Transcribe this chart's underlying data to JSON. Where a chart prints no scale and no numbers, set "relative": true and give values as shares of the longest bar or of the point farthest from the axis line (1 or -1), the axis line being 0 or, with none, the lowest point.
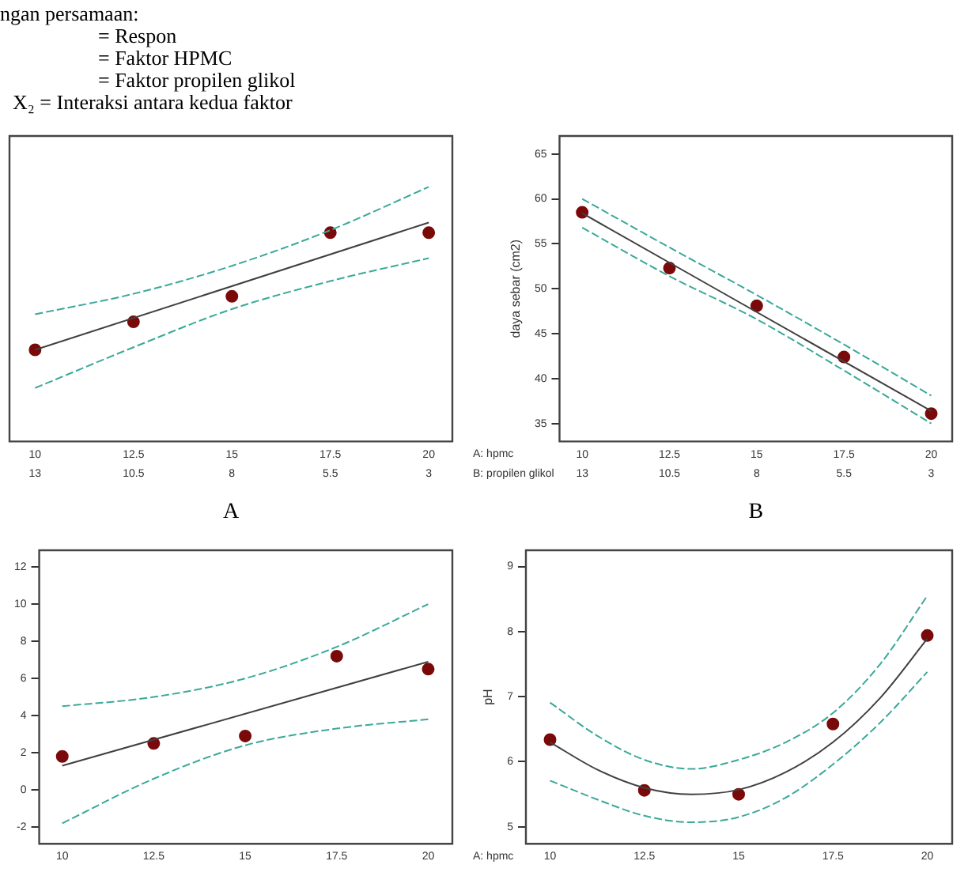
{
  "chart_data": [
    {
      "type": "other",
      "annotations": [
        "ngan persamaan:",
        "= Respon",
        "= Faktor HPMC",
        "= Faktor propilen glikol",
        "X₂ = Interaksi antara kedua faktor"
      ]
    },
    {
      "type": "scatter",
      "relative": true,
      "xlim": [
        9.35,
        20.6
      ],
      "xticks": [
        10,
        12.5,
        15,
        17.5,
        20
      ],
      "x2lim": [
        13.65,
        2.4
      ],
      "x2ticks": [
        13,
        10.5,
        8,
        5.5,
        3
      ],
      "annotations": [
        "A"
      ],
      "series": [
        {
          "type": "line",
          "marker": "none",
          "color": "#3aa89a",
          "line_style": "dashed",
          "x": [
            10,
            12.5,
            15,
            17.5,
            20
          ],
          "values": [
            0.5,
            0.58,
            0.69,
            0.83,
            1
          ]
        },
        {
          "type": "line",
          "marker": "none",
          "color": "#3aa89a",
          "line_style": "dashed",
          "x": [
            10,
            12.5,
            15,
            17.5,
            20
          ],
          "values": [
            0.21,
            0.37,
            0.52,
            0.63,
            0.72
          ]
        },
        {
          "type": "line",
          "marker": "none",
          "color": "#404040",
          "line_style": "solid",
          "x": [
            10,
            20
          ],
          "values": [
            0.36,
            0.86
          ]
        },
        {
          "type": "scatter",
          "marker": "circle",
          "color": "#7a0a0a",
          "x": [
            10,
            12.5,
            15,
            17.5,
            20
          ],
          "values": [
            0.36,
            0.47,
            0.57,
            0.82,
            0.82
          ]
        }
      ]
    },
    {
      "type": "scatter",
      "ylabel": "daya sebar (cm2)",
      "xlabel": "A: hpmc",
      "x2label": "B: propilen glikol",
      "xlim": [
        9.35,
        20.6
      ],
      "xticks": [
        10,
        12.5,
        15,
        17.5,
        20
      ],
      "x2lim": [
        13.65,
        2.4
      ],
      "x2ticks": [
        13,
        10.5,
        8,
        5.5,
        3
      ],
      "ylim": [
        33,
        67
      ],
      "yticks": [
        35,
        40,
        45,
        50,
        55,
        60,
        65
      ],
      "annotations": [
        "B"
      ],
      "series": [
        {
          "type": "line",
          "marker": "none",
          "color": "#3aa89a",
          "line_style": "dashed",
          "x": [
            10,
            12.5,
            15,
            17.5,
            20
          ],
          "values": [
            60.0,
            54.6,
            49.3,
            43.8,
            38.1
          ]
        },
        {
          "type": "line",
          "marker": "none",
          "color": "#3aa89a",
          "line_style": "dashed",
          "x": [
            10,
            12.5,
            15,
            17.5,
            20
          ],
          "values": [
            56.8,
            51.4,
            46.6,
            40.9,
            35.0
          ]
        },
        {
          "type": "line",
          "marker": "none",
          "color": "#404040",
          "line_style": "solid",
          "x": [
            10,
            20
          ],
          "values": [
            58.4,
            36.4
          ]
        },
        {
          "type": "scatter",
          "marker": "circle",
          "color": "#7a0a0a",
          "x": [
            10,
            12.5,
            15,
            17.5,
            20
          ],
          "values": [
            58.5,
            52.3,
            48.1,
            42.4,
            36.1
          ]
        }
      ]
    },
    {
      "type": "scatter",
      "xlim": [
        9.37,
        20.66
      ],
      "xticks": [
        10,
        12.5,
        15,
        17.5,
        20
      ],
      "ylim": [
        -2.9,
        12.9
      ],
      "yticks": [
        -2,
        0,
        2,
        4,
        6,
        8,
        10,
        12
      ],
      "series": [
        {
          "type": "line",
          "marker": "none",
          "color": "#3aa89a",
          "line_style": "dashed",
          "x": [
            10,
            12.5,
            15,
            17.5,
            20
          ],
          "values": [
            4.5,
            5.0,
            6.0,
            7.7,
            10.0
          ]
        },
        {
          "type": "line",
          "marker": "none",
          "color": "#3aa89a",
          "line_style": "dashed",
          "x": [
            10,
            12.5,
            15,
            17.5,
            20
          ],
          "values": [
            -1.8,
            0.6,
            2.4,
            3.3,
            3.8
          ]
        },
        {
          "type": "line",
          "marker": "none",
          "color": "#404040",
          "line_style": "solid",
          "x": [
            10,
            20
          ],
          "values": [
            1.3,
            6.9
          ]
        },
        {
          "type": "scatter",
          "marker": "circle",
          "color": "#7a0a0a",
          "x": [
            10,
            12.5,
            15,
            17.5,
            20
          ],
          "values": [
            1.8,
            2.5,
            2.9,
            7.2,
            6.5
          ]
        }
      ]
    },
    {
      "type": "scatter",
      "ylabel": "pH",
      "xlabel": "A: hpmc",
      "xlim": [
        9.36,
        20.66
      ],
      "xticks": [
        10,
        12.5,
        15,
        17.5,
        20
      ],
      "ylim": [
        4.74,
        9.25
      ],
      "yticks": [
        5,
        6,
        7,
        8,
        9
      ],
      "series": [
        {
          "type": "line",
          "marker": "none",
          "color": "#3aa89a",
          "line_style": "dashed",
          "x": [
            10,
            11.25,
            12.5,
            13.75,
            15,
            16.25,
            17.5,
            18.75,
            20
          ],
          "values": [
            6.91,
            6.4,
            6.03,
            5.89,
            6.03,
            6.3,
            6.75,
            7.5,
            8.55
          ]
        },
        {
          "type": "line",
          "marker": "none",
          "color": "#3aa89a",
          "line_style": "dashed",
          "x": [
            10,
            11.25,
            12.5,
            13.75,
            15,
            16.25,
            17.5,
            18.75,
            20
          ],
          "values": [
            5.71,
            5.42,
            5.17,
            5.07,
            5.15,
            5.45,
            5.96,
            6.6,
            7.38
          ]
        },
        {
          "type": "line",
          "marker": "none",
          "color": "#404040",
          "line_style": "solid",
          "x": [
            10,
            11.25,
            12.5,
            13.75,
            15,
            16.25,
            17.5,
            18.75,
            20
          ],
          "values": [
            6.3,
            5.88,
            5.6,
            5.5,
            5.57,
            5.84,
            6.3,
            6.98,
            7.89
          ]
        },
        {
          "type": "scatter",
          "marker": "circle",
          "color": "#7a0a0a",
          "x": [
            10,
            12.5,
            15,
            17.5,
            20
          ],
          "values": [
            6.34,
            5.56,
            5.5,
            6.58,
            7.94
          ]
        }
      ]
    }
  ]
}
